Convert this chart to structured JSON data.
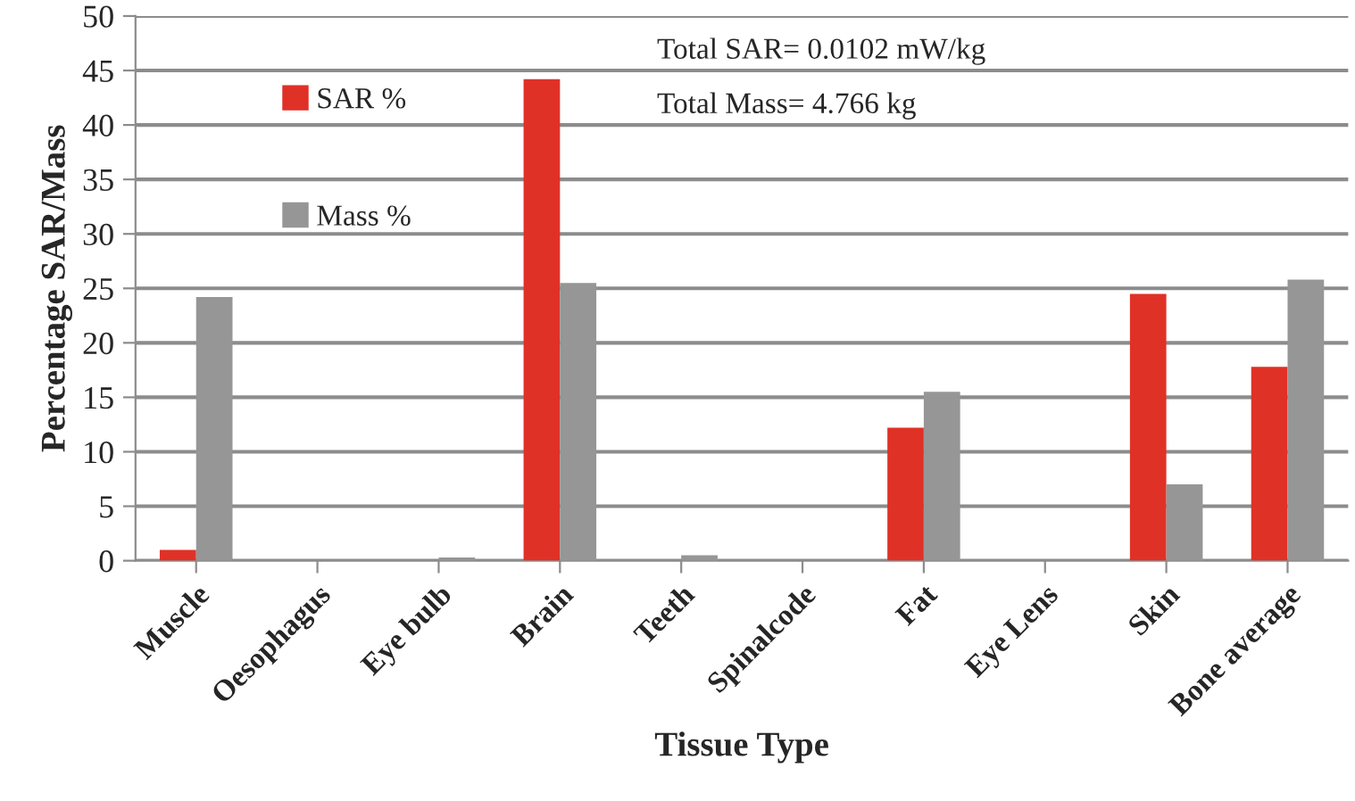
{
  "chart_data": {
    "type": "bar",
    "xlabel": "Tissue Type",
    "ylabel": "Percentage SAR/Mass",
    "categories": [
      "Muscle",
      "Oesophagus",
      "Eye bulb",
      "Brain",
      "Teeth",
      "Spinalcode",
      "Fat",
      "Eye Lens",
      "Skin",
      "Bone average"
    ],
    "series": [
      {
        "name": "SAR %",
        "color": "#e03127",
        "values": [
          1.0,
          null,
          null,
          44.2,
          null,
          null,
          12.2,
          null,
          24.5,
          17.8
        ]
      },
      {
        "name": "Mass %",
        "color": "#969696",
        "values": [
          24.2,
          null,
          0.3,
          25.5,
          0.5,
          null,
          15.5,
          null,
          7.0,
          25.8
        ]
      }
    ],
    "ylim": [
      0,
      50
    ],
    "yticks": [
      0,
      5,
      10,
      15,
      20,
      25,
      30,
      35,
      40,
      45,
      50
    ],
    "grid": "y",
    "legend": "top left",
    "annotations": [
      "Total SAR= 0.0102 mW/kg",
      "Total Mass= 4.766 kg"
    ]
  }
}
